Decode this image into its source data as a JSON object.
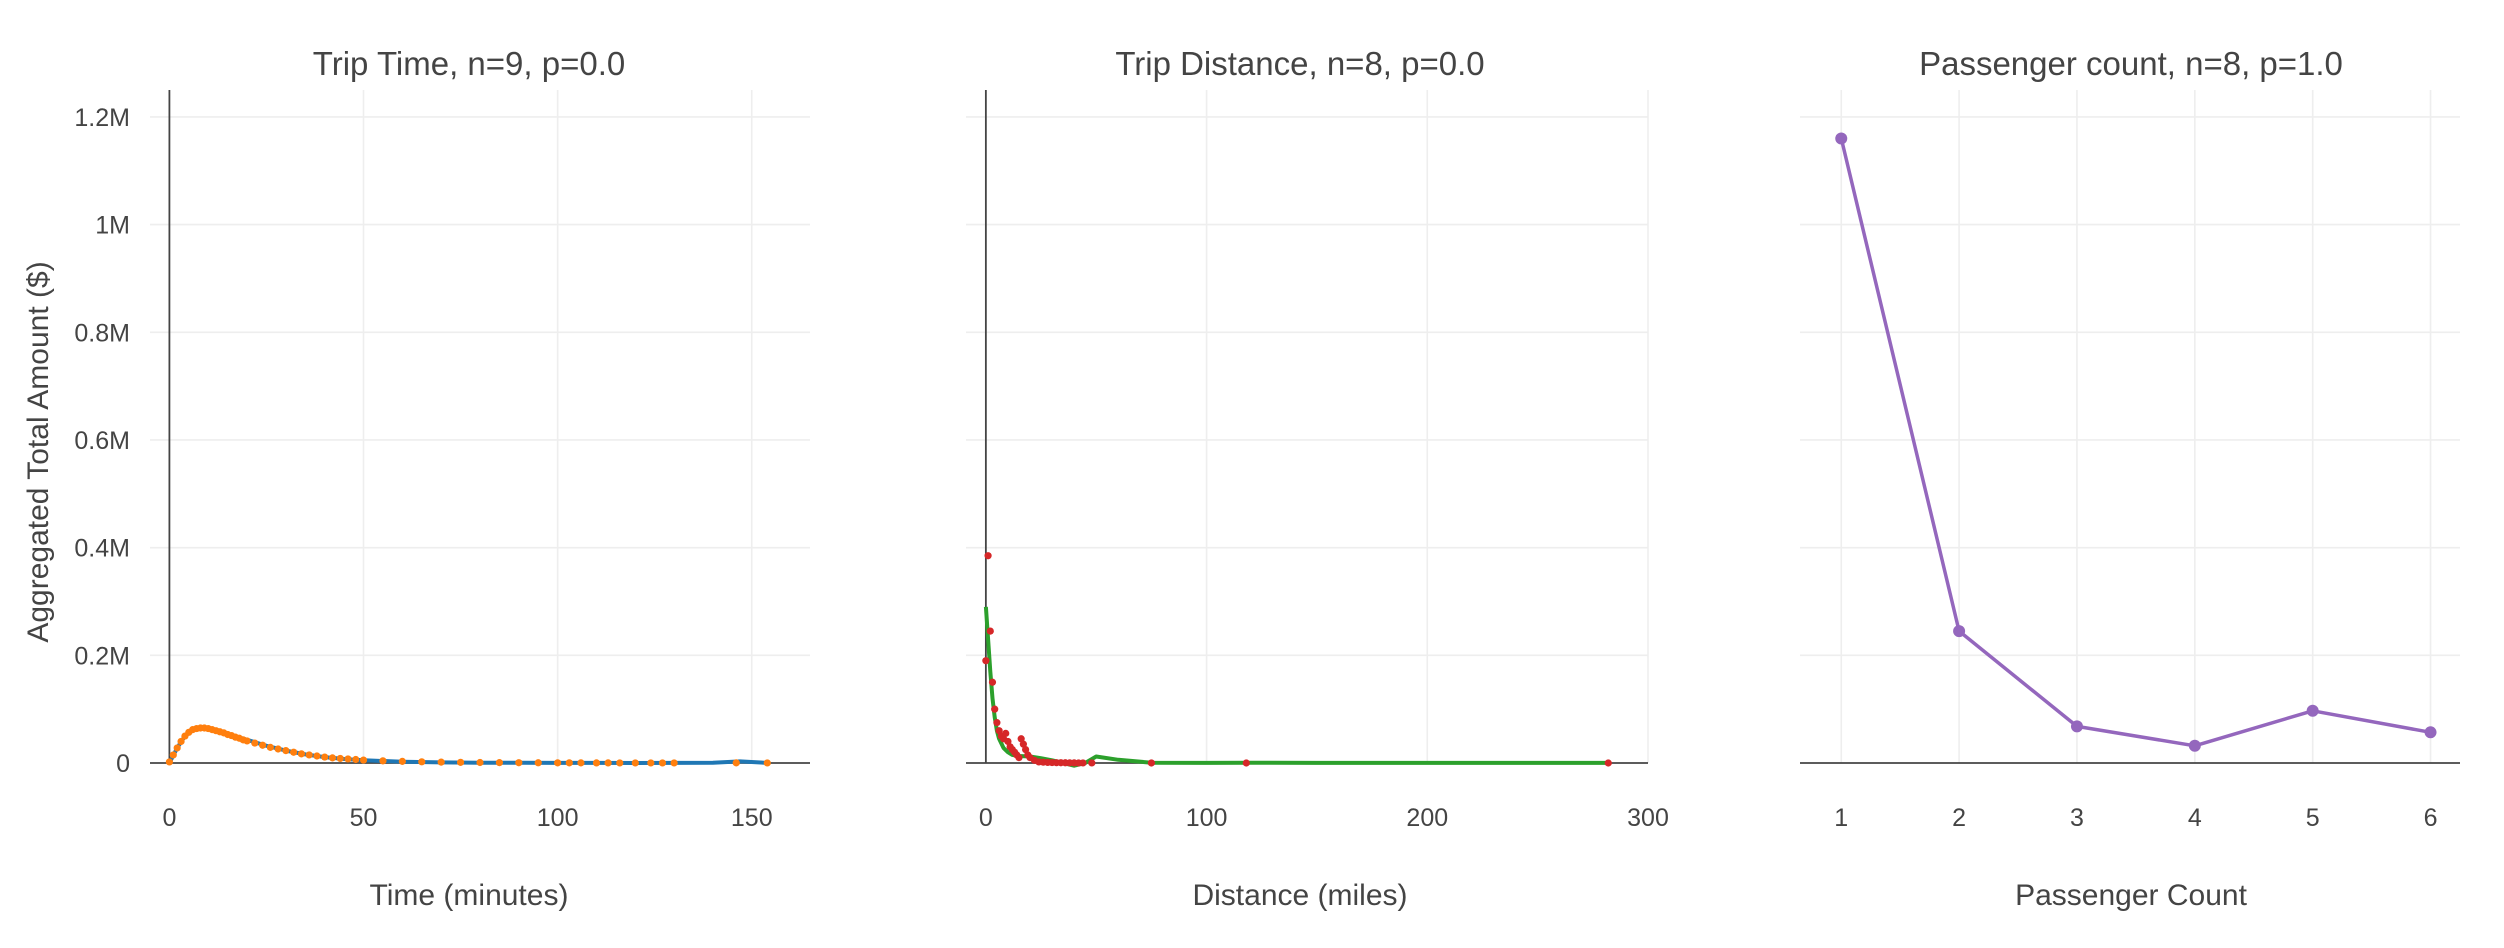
{
  "chart_data": [
    {
      "type": "line",
      "title": "Trip Time, n=9, p=0.0",
      "xlabel": "Time (minutes)",
      "ylabel": "Aggregated Total Amount ($)",
      "xlim": [
        -5,
        165
      ],
      "ylim": [
        0,
        1250000
      ],
      "xticks": [
        0,
        50,
        100,
        150
      ],
      "xticklabels": [
        "0",
        "50",
        "100",
        "150"
      ],
      "yticks": [
        0,
        200000,
        400000,
        600000,
        800000,
        1000000,
        1200000
      ],
      "yticklabels": [
        "0",
        "0.2M",
        "0.4M",
        "0.6M",
        "0.8M",
        "1M",
        "1.2M"
      ],
      "grid": true,
      "series": [
        {
          "mode": "line",
          "color": "#1f77b4",
          "x": [
            0,
            2,
            4,
            6,
            8,
            10,
            12,
            15,
            20,
            25,
            30,
            35,
            40,
            45,
            50,
            60,
            70,
            80,
            90,
            100,
            110,
            120,
            130,
            140,
            147,
            154
          ],
          "y": [
            0,
            28000,
            50000,
            61000,
            64000,
            63000,
            60000,
            54000,
            43000,
            32000,
            23000,
            16000,
            11000,
            7500,
            5000,
            2500,
            1200,
            600,
            300,
            200,
            100,
            50,
            100,
            500,
            3000,
            200
          ]
        },
        {
          "mode": "markers",
          "color": "#ff7f0e",
          "x": [
            0,
            1,
            2,
            3,
            4,
            5,
            6,
            7,
            8,
            9,
            10,
            11,
            12,
            13,
            14,
            15,
            16,
            17,
            18,
            19,
            20,
            22,
            24,
            26,
            28,
            30,
            32,
            34,
            36,
            38,
            40,
            42,
            44,
            46,
            48,
            50,
            55,
            60,
            65,
            70,
            75,
            80,
            85,
            90,
            95,
            100,
            103,
            106,
            110,
            113,
            116,
            120,
            124,
            127,
            130,
            146,
            154
          ],
          "y": [
            2000,
            15000,
            28000,
            40000,
            50000,
            57000,
            62000,
            64000,
            65000,
            65000,
            64000,
            62000,
            60000,
            58000,
            56000,
            53000,
            51000,
            48000,
            46000,
            43000,
            41000,
            37000,
            33000,
            29000,
            26000,
            23000,
            20000,
            17000,
            15000,
            13000,
            11000,
            9500,
            8500,
            7500,
            6500,
            5500,
            4000,
            3000,
            2200,
            1600,
            1200,
            900,
            700,
            500,
            400,
            300,
            300,
            250,
            200,
            200,
            150,
            150,
            120,
            100,
            100,
            300,
            100
          ]
        }
      ]
    },
    {
      "type": "line",
      "title": "Trip Distance, n=8, p=0.0",
      "xlabel": "Distance (miles)",
      "ylabel": "",
      "xlim": [
        -9,
        300
      ],
      "ylim": [
        0,
        1250000
      ],
      "xticks": [
        0,
        100,
        200,
        300
      ],
      "xticklabels": [
        "0",
        "100",
        "200",
        "300"
      ],
      "yticks": [
        0,
        200000,
        400000,
        600000,
        800000,
        1000000,
        1200000
      ],
      "grid": true,
      "series": [
        {
          "mode": "line",
          "color": "#2ca02c",
          "x": [
            0,
            1,
            2,
            3,
            4,
            5,
            6,
            8,
            10,
            12,
            15,
            20,
            25,
            30,
            35,
            40,
            45,
            50,
            60,
            75,
            100,
            120,
            150,
            200,
            250,
            282
          ],
          "y": [
            290000,
            230000,
            170000,
            120000,
            85000,
            60000,
            45000,
            28000,
            20000,
            15000,
            13000,
            12000,
            9000,
            5000,
            0,
            -5000,
            0,
            12000,
            6000,
            500,
            100,
            500,
            100,
            100,
            100,
            100
          ]
        },
        {
          "mode": "markers",
          "color": "#d62728",
          "x": [
            0,
            1,
            2,
            3,
            4,
            5,
            6,
            7,
            8,
            9,
            10,
            11,
            12,
            13,
            14,
            15,
            16,
            17,
            18,
            19,
            20,
            22,
            24,
            26,
            28,
            30,
            32,
            34,
            36,
            38,
            40,
            42,
            44,
            48,
            75,
            118,
            282
          ],
          "y": [
            190000,
            385000,
            245000,
            150000,
            100000,
            75000,
            60000,
            50000,
            45000,
            55000,
            40000,
            30000,
            25000,
            20000,
            15000,
            10000,
            45000,
            35000,
            25000,
            15000,
            10000,
            5000,
            2000,
            1500,
            1000,
            800,
            600,
            500,
            400,
            300,
            200,
            150,
            100,
            80,
            50,
            30,
            20
          ]
        }
      ]
    },
    {
      "type": "line",
      "title": "Passenger count, n=8, p=1.0",
      "xlabel": "Passenger Count",
      "ylabel": "",
      "xlim": [
        0.65,
        6.25
      ],
      "ylim": [
        0,
        1250000
      ],
      "xticks": [
        1,
        2,
        3,
        4,
        5,
        6
      ],
      "xticklabels": [
        "1",
        "2",
        "3",
        "4",
        "5",
        "6"
      ],
      "yticks": [
        0,
        200000,
        400000,
        600000,
        800000,
        1000000,
        1200000
      ],
      "grid": true,
      "series": [
        {
          "mode": "lines+markers",
          "color": "#9467bd",
          "x": [
            1,
            2,
            3,
            4,
            5,
            6
          ],
          "y": [
            1160000,
            245000,
            68000,
            32000,
            97000,
            57000
          ]
        }
      ]
    }
  ]
}
